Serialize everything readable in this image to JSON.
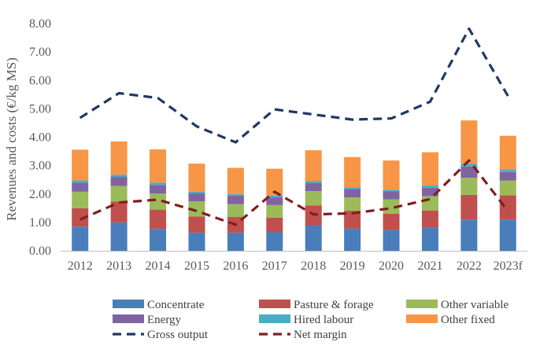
{
  "chart_data": {
    "type": "bar",
    "stacked": true,
    "title": "",
    "xlabel": "",
    "ylabel": "Revenues and costs (€/kg MS)",
    "ylim": [
      0,
      8
    ],
    "ytick_step": 1,
    "ytick_labels": [
      "0.00",
      "1.00",
      "2.00",
      "3.00",
      "4.00",
      "5.00",
      "6.00",
      "7.00",
      "8.00"
    ],
    "grid": false,
    "legend_position": "bottom",
    "categories": [
      "2012",
      "2013",
      "2014",
      "2015",
      "2016",
      "2017",
      "2018",
      "2019",
      "2020",
      "2021",
      "2022",
      "2023f"
    ],
    "series": [
      {
        "name": "Concentrate",
        "kind": "bar",
        "color": "#4a7ebb",
        "values": [
          0.85,
          1.0,
          0.77,
          0.64,
          0.64,
          0.65,
          0.9,
          0.78,
          0.73,
          0.82,
          1.1,
          1.1
        ]
      },
      {
        "name": "Pasture & forage",
        "kind": "bar",
        "color": "#c0504d",
        "values": [
          0.65,
          0.73,
          0.68,
          0.57,
          0.55,
          0.52,
          0.7,
          0.63,
          0.58,
          0.6,
          0.87,
          0.85
        ]
      },
      {
        "name": "Other variable",
        "kind": "bar",
        "color": "#9bbb59",
        "values": [
          0.58,
          0.55,
          0.57,
          0.53,
          0.45,
          0.44,
          0.5,
          0.47,
          0.5,
          0.5,
          0.6,
          0.52
        ]
      },
      {
        "name": "Energy",
        "kind": "bar",
        "color": "#8064a2",
        "values": [
          0.32,
          0.32,
          0.3,
          0.28,
          0.3,
          0.27,
          0.28,
          0.3,
          0.28,
          0.3,
          0.4,
          0.3
        ]
      },
      {
        "name": "Hired labour",
        "kind": "bar",
        "color": "#4bacc6",
        "values": [
          0.08,
          0.08,
          0.08,
          0.06,
          0.06,
          0.06,
          0.08,
          0.06,
          0.06,
          0.08,
          0.1,
          0.1
        ]
      },
      {
        "name": "Other fixed",
        "kind": "bar",
        "color": "#f79646",
        "values": [
          1.08,
          1.17,
          1.17,
          0.99,
          0.92,
          0.95,
          1.08,
          1.06,
          1.03,
          1.17,
          1.52,
          1.18
        ]
      },
      {
        "name": "Gross output",
        "kind": "line",
        "style": "dashed",
        "color": "#1f3864",
        "values": [
          4.68,
          5.55,
          5.38,
          4.38,
          3.82,
          4.98,
          4.8,
          4.62,
          4.66,
          5.25,
          7.82,
          5.45
        ]
      },
      {
        "name": "Net margin",
        "kind": "line",
        "style": "dashed",
        "color": "#7f1f1f",
        "values": [
          1.1,
          1.7,
          1.8,
          1.4,
          0.92,
          2.08,
          1.28,
          1.32,
          1.5,
          1.82,
          3.18,
          1.4
        ]
      }
    ]
  }
}
